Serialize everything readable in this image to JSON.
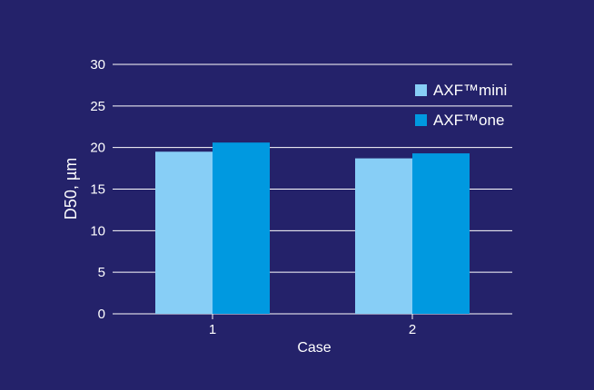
{
  "chart_data": {
    "type": "bar",
    "title": "",
    "xlabel": "Case",
    "ylabel": "D50, µm",
    "categories": [
      "1",
      "2"
    ],
    "series": [
      {
        "name": "AXF™mini",
        "values": [
          19.5,
          18.7
        ],
        "color": "#87cef6"
      },
      {
        "name": "AXF™one",
        "values": [
          20.6,
          19.3
        ],
        "color": "#0099e0"
      }
    ],
    "ylim": [
      0,
      30
    ],
    "yticks": [
      "0",
      "5",
      "10",
      "15",
      "20",
      "25",
      "30"
    ],
    "grid": true,
    "legend_position": "top-right",
    "background_color": "#24226a",
    "gridline_color": "#ffffff",
    "text_color": "#ffffff"
  }
}
